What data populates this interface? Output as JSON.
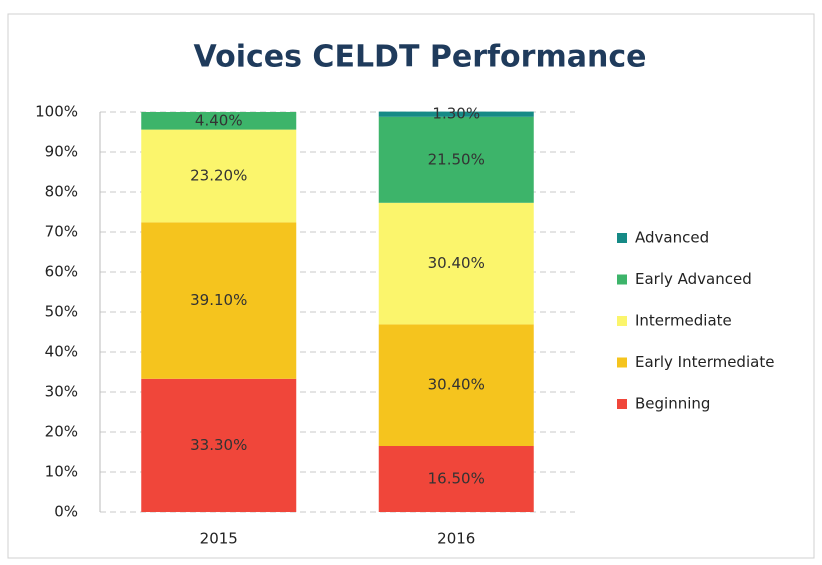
{
  "chart_data": {
    "type": "stacked_bar",
    "title": "Voices CELDT Performance",
    "categories": [
      "2015",
      "2016"
    ],
    "series": [
      {
        "name": "Beginning",
        "color": "#f0463a",
        "values": [
          33.3,
          16.5
        ],
        "value_labels": [
          "33.30%",
          "16.50%"
        ]
      },
      {
        "name": "Early Intermediate",
        "color": "#f5c41e",
        "values": [
          39.1,
          30.4
        ],
        "value_labels": [
          "39.10%",
          "30.40%"
        ]
      },
      {
        "name": "Intermediate",
        "color": "#fbf56c",
        "values": [
          23.2,
          30.4
        ],
        "value_labels": [
          "23.20%",
          "30.40%"
        ]
      },
      {
        "name": "Early Advanced",
        "color": "#3db46a",
        "values": [
          4.4,
          21.5
        ],
        "value_labels": [
          "4.40%",
          "21.50%"
        ]
      },
      {
        "name": "Advanced",
        "color": "#168a86",
        "values": [
          null,
          1.3
        ],
        "value_labels": [
          null,
          "1.30%"
        ]
      }
    ],
    "ylim": [
      0,
      100
    ],
    "yticks": [
      {
        "value": 0,
        "label": "0%"
      },
      {
        "value": 10,
        "label": "10%"
      },
      {
        "value": 20,
        "label": "20%"
      },
      {
        "value": 30,
        "label": "30%"
      },
      {
        "value": 40,
        "label": "40%"
      },
      {
        "value": 50,
        "label": "50%"
      },
      {
        "value": 60,
        "label": "60%"
      },
      {
        "value": 70,
        "label": "70%"
      },
      {
        "value": 80,
        "label": "80%"
      },
      {
        "value": 90,
        "label": "90%"
      },
      {
        "value": 100,
        "label": "100%"
      }
    ],
    "grid": true,
    "legend": "right"
  }
}
